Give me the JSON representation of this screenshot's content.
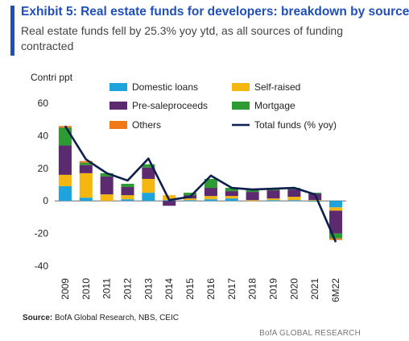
{
  "header": {
    "title": "Exhibit 5: Real estate funds for developers: breakdown by source",
    "subtitle": "Real estate funds fell by 25.3% yoy ytd, as all sources of funding contracted",
    "accent_color": "#1f4fb8"
  },
  "footer": {
    "source_label": "Source:",
    "source_text": "BofA Global Research, NBS, CEIC",
    "brand": "BofA GLOBAL RESEARCH"
  },
  "chart_data": {
    "type": "bar",
    "stacked": true,
    "ylabel": "Contri  ppt",
    "ylim": [
      -40,
      60
    ],
    "yticks": [
      -40,
      -20,
      0,
      20,
      40,
      60
    ],
    "grid": false,
    "legend_position": "top",
    "categories": [
      "2009",
      "2010",
      "2011",
      "2012",
      "2013",
      "2014",
      "2015",
      "2016",
      "2017",
      "2018",
      "2019",
      "2020",
      "2021",
      "6M22"
    ],
    "series": [
      {
        "name": "Domestic loans",
        "color": "#1fa3dc",
        "values": [
          9,
          2,
          0,
          1,
          5,
          0.5,
          0.5,
          1,
          1.5,
          0,
          0.5,
          0.5,
          -0.5,
          -4
        ]
      },
      {
        "name": "Self-raised",
        "color": "#f5b70f",
        "values": [
          7,
          15,
          4,
          2.5,
          8.5,
          3,
          1,
          2,
          1.5,
          0.5,
          1,
          2,
          0.5,
          -2
        ]
      },
      {
        "name": "Pre-saleproceeds",
        "color": "#5c2a6e",
        "values": [
          18,
          5,
          11,
          5,
          7,
          -3,
          2,
          5,
          3,
          5,
          5,
          4.5,
          4,
          -14
        ]
      },
      {
        "name": "Mortgage",
        "color": "#2e9a34",
        "values": [
          11,
          1.5,
          2,
          2,
          2,
          0,
          1.5,
          5.5,
          2,
          2,
          1.5,
          1,
          0.5,
          -3
        ]
      },
      {
        "name": "Others",
        "color": "#f07a1a",
        "values": [
          1,
          1,
          0,
          0,
          0,
          0,
          0,
          0,
          0,
          0,
          0,
          0,
          0,
          -1
        ]
      },
      {
        "name": "Total funds (% yoy)",
        "type": "line",
        "color": "#0d1f4c",
        "values": [
          46,
          25.5,
          17,
          12.5,
          26,
          0.5,
          2.5,
          15.5,
          8,
          7,
          7.5,
          8,
          4,
          -25.3
        ]
      }
    ]
  }
}
